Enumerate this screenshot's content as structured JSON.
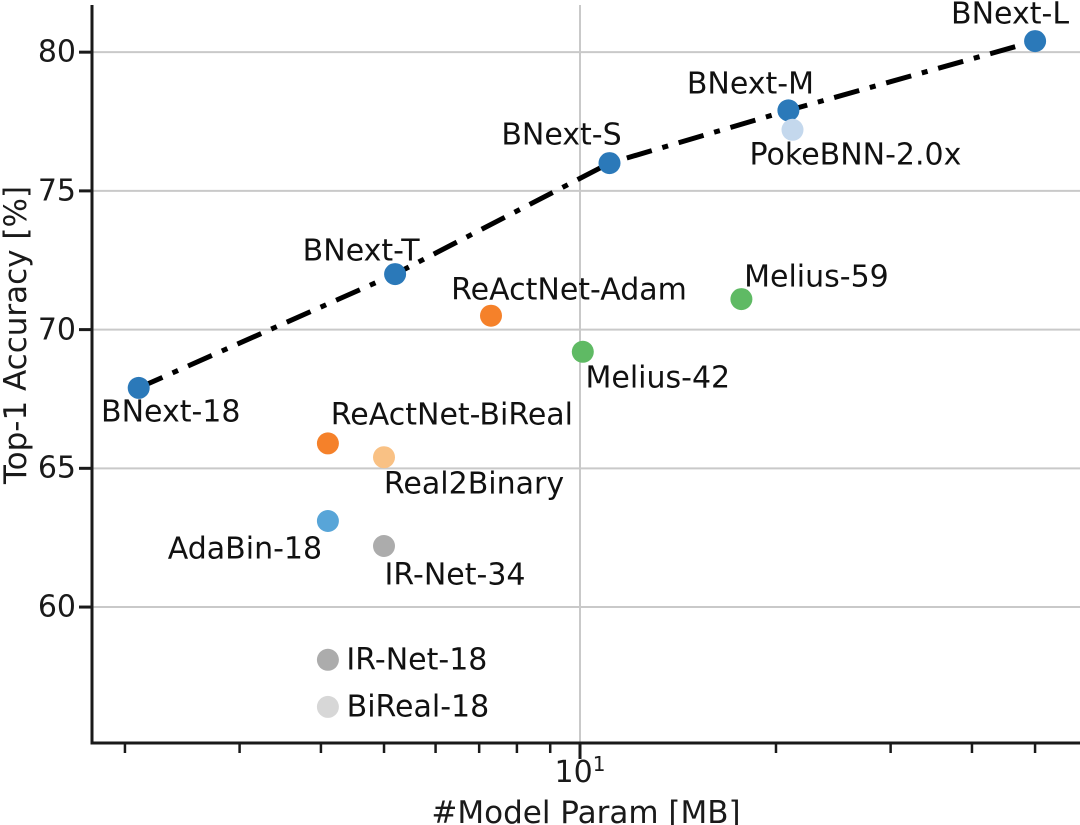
{
  "figure": {
    "background": "#ffffff",
    "text_color": "#1a1a1a",
    "grid_color": "#c9c9c9",
    "spine_color": "#1a1a1a"
  },
  "chart_data": {
    "type": "scatter",
    "title": "",
    "xlabel": "#Model Param [MB]",
    "ylabel": "Top-1 Accuracy [%]",
    "x_scale": "log",
    "xlim": [
      1.78,
      58.2
    ],
    "ylim": [
      55.1,
      81.7
    ],
    "grid": "on",
    "legend_position": "none",
    "y_ticks": [
      {
        "value": 80,
        "label": "80"
      },
      {
        "value": 75,
        "label": "75"
      },
      {
        "value": 70,
        "label": "70"
      },
      {
        "value": 65,
        "label": "65"
      },
      {
        "value": 60,
        "label": "60"
      }
    ],
    "x_major_ticks": [
      {
        "value": 10,
        "base": "10",
        "exp": "1"
      }
    ],
    "x_minor_ticks": [
      2,
      3,
      4,
      5,
      6,
      7,
      8,
      9,
      20,
      30,
      40,
      50
    ],
    "trend_line": {
      "name": "BNext-family-line",
      "style": "dash-dot",
      "color": "#000000",
      "through": [
        "BNext-18",
        "BNext-T",
        "BNext-S",
        "BNext-M",
        "BNext-L"
      ]
    },
    "points": [
      {
        "name": "BNext-L",
        "x_mb": 50.0,
        "y_acc": 80.4,
        "color": "#2b79b9",
        "label_offset": [
          -25,
          -27
        ]
      },
      {
        "name": "BNext-M",
        "x_mb": 20.9,
        "y_acc": 77.9,
        "color": "#2b79b9",
        "label_offset": [
          -38,
          -26
        ]
      },
      {
        "name": "PokeBNN-2.0x",
        "x_mb": 21.2,
        "y_acc": 77.2,
        "color": "#c4d8ed",
        "label_offset": [
          63,
          25
        ]
      },
      {
        "name": "BNext-S",
        "x_mb": 11.1,
        "y_acc": 76.0,
        "color": "#2b79b9",
        "label_offset": [
          -48,
          -28
        ]
      },
      {
        "name": "BNext-T",
        "x_mb": 5.2,
        "y_acc": 72.0,
        "color": "#2b79b9",
        "label_offset": [
          -34,
          -23
        ]
      },
      {
        "name": "Melius-59",
        "x_mb": 17.7,
        "y_acc": 71.1,
        "color": "#5fba64",
        "label_offset": [
          75,
          -22
        ]
      },
      {
        "name": "ReActNet-Adam",
        "x_mb": 7.3,
        "y_acc": 70.5,
        "color": "#f5812a",
        "label_offset": [
          78,
          -26
        ]
      },
      {
        "name": "Melius-42",
        "x_mb": 10.1,
        "y_acc": 69.2,
        "color": "#5fba64",
        "label_offset": [
          75,
          26
        ]
      },
      {
        "name": "BNext-18",
        "x_mb": 2.1,
        "y_acc": 67.9,
        "color": "#2b79b9",
        "label_offset": [
          32,
          24
        ]
      },
      {
        "name": "ReActNet-BiReal",
        "x_mb": 4.1,
        "y_acc": 65.9,
        "color": "#f5812a",
        "label_offset": [
          124,
          -28
        ]
      },
      {
        "name": "Real2Binary",
        "x_mb": 5.0,
        "y_acc": 65.4,
        "color": "#f9c184",
        "label_offset": [
          90,
          27
        ]
      },
      {
        "name": "AdaBin-18",
        "x_mb": 4.1,
        "y_acc": 63.1,
        "color": "#58a5d8",
        "label_offset": [
          -83,
          28
        ]
      },
      {
        "name": "IR-Net-34",
        "x_mb": 5.0,
        "y_acc": 62.2,
        "color": "#acacac",
        "label_offset": [
          71,
          29
        ]
      },
      {
        "name": "IR-Net-18",
        "x_mb": 4.1,
        "y_acc": 58.1,
        "color": "#acacac",
        "label_offset": [
          89,
          0
        ]
      },
      {
        "name": "BiReal-18",
        "x_mb": 4.1,
        "y_acc": 56.4,
        "color": "#d7d7d7",
        "label_offset": [
          90,
          0
        ]
      }
    ]
  }
}
